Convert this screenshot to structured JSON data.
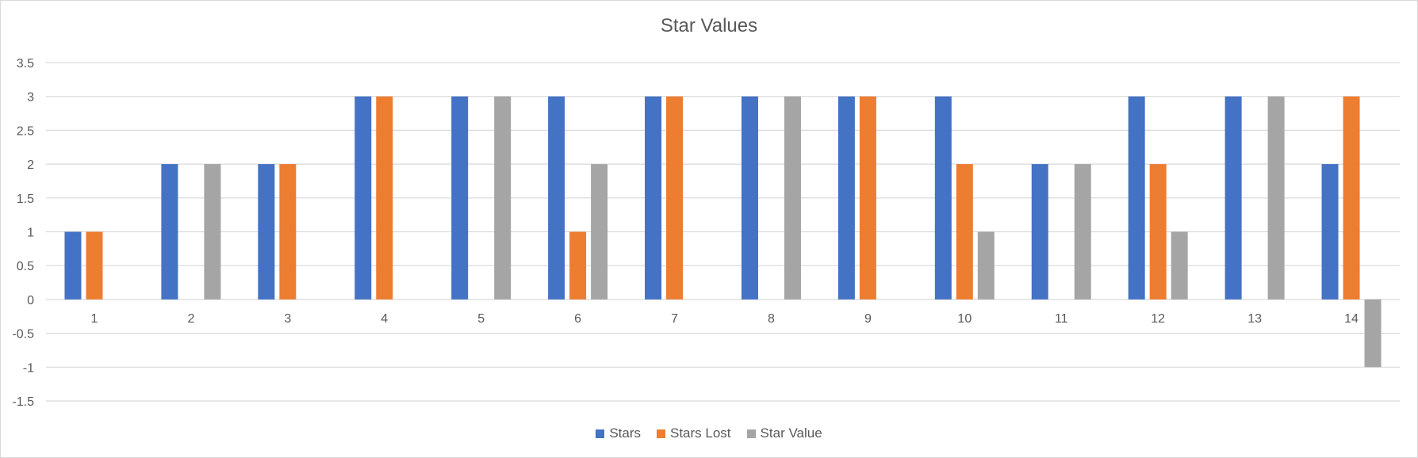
{
  "chart_data": {
    "type": "bar",
    "title": "Star Values",
    "categories": [
      "1",
      "2",
      "3",
      "4",
      "5",
      "6",
      "7",
      "8",
      "9",
      "10",
      "11",
      "12",
      "13",
      "14"
    ],
    "series": [
      {
        "name": "Stars",
        "color": "#4472C4",
        "values": [
          1,
          2,
          2,
          3,
          3,
          3,
          3,
          3,
          3,
          3,
          2,
          3,
          3,
          2
        ]
      },
      {
        "name": "Stars Lost",
        "color": "#ED7D31",
        "values": [
          1,
          0,
          2,
          3,
          0,
          1,
          3,
          0,
          3,
          2,
          0,
          2,
          0,
          3
        ]
      },
      {
        "name": "Star Value",
        "color": "#A5A5A5",
        "values": [
          0,
          2,
          0,
          0,
          3,
          2,
          0,
          3,
          0,
          1,
          2,
          1,
          3,
          -1
        ]
      }
    ],
    "ylim": [
      -1.5,
      3.5
    ],
    "yticks": [
      "3.5",
      "3",
      "2.5",
      "2",
      "1.5",
      "1",
      "0.5",
      "0",
      "-0.5",
      "-1",
      "-1.5"
    ],
    "grid": true,
    "legend": "bottom"
  }
}
